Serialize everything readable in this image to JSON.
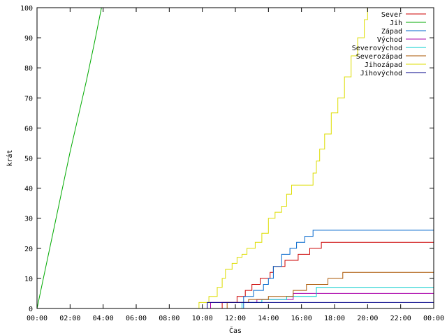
{
  "chart_data": {
    "type": "line",
    "step": true,
    "xlabel": "Čas",
    "ylabel": "krát",
    "xlim": [
      0,
      24
    ],
    "ylim": [
      0,
      100
    ],
    "x_tick_labels": [
      "00:00",
      "02:00",
      "04:00",
      "06:00",
      "08:00",
      "10:00",
      "12:00",
      "14:00",
      "16:00",
      "18:00",
      "20:00",
      "22:00",
      "00:00"
    ],
    "y_tick_labels": [
      "0",
      "10",
      "20",
      "30",
      "40",
      "50",
      "60",
      "70",
      "80",
      "90",
      "100"
    ],
    "grid": false,
    "legend_position": "top-right",
    "series": [
      {
        "name": "Sever",
        "color": "#cc0000",
        "x": [
          0,
          11.2,
          12.1,
          12.6,
          13.0,
          13.5,
          14.1,
          14.3,
          15.0,
          15.8,
          16.5,
          17.2,
          17.5,
          17.8,
          24
        ],
        "y": [
          0,
          2,
          4,
          6,
          8,
          10,
          12,
          14,
          16,
          18,
          20,
          22,
          22,
          22,
          22
        ]
      },
      {
        "name": "Jih",
        "color": "#00aa00",
        "x": [
          0,
          0.5,
          1.0,
          1.5,
          2.0,
          2.5,
          3.0,
          3.5,
          3.9
        ],
        "y": [
          0,
          13,
          26,
          39,
          52,
          64,
          76,
          89,
          100
        ]
      },
      {
        "name": "Západ",
        "color": "#0066cc",
        "x": [
          0,
          12.5,
          13.1,
          13.7,
          14.0,
          14.3,
          14.8,
          15.3,
          15.7,
          16.2,
          16.7,
          17.1,
          24
        ],
        "y": [
          0,
          4,
          6,
          8,
          10,
          14,
          18,
          20,
          22,
          24,
          26,
          26,
          26
        ]
      },
      {
        "name": "Východ",
        "color": "#aa00aa",
        "x": [
          0,
          10.5,
          13.3,
          15.5,
          24
        ],
        "y": [
          0,
          2,
          3,
          5,
          5
        ]
      },
      {
        "name": "Severovýchod",
        "color": "#00cccc",
        "x": [
          0,
          12.4,
          13.6,
          15.1,
          16.9,
          24
        ],
        "y": [
          0,
          2,
          3,
          4,
          7,
          7
        ]
      },
      {
        "name": "Severozápad",
        "color": "#aa5500",
        "x": [
          0,
          11.5,
          12.8,
          14.0,
          15.5,
          16.3,
          17.6,
          18.5,
          24
        ],
        "y": [
          0,
          2,
          3,
          4,
          6,
          8,
          10,
          12,
          12
        ]
      },
      {
        "name": "Jihozápad",
        "color": "#dddd00",
        "x": [
          0,
          9.8,
          10.4,
          10.9,
          11.2,
          11.4,
          11.6,
          11.8,
          12.1,
          12.4,
          12.7,
          13.2,
          13.6,
          14.0,
          14.4,
          14.8,
          15.1,
          15.4,
          15.7,
          16.0,
          16.4,
          16.7,
          16.9,
          17.1,
          17.4,
          17.8,
          18.2,
          18.6,
          19.0,
          19.4,
          19.8,
          20.0
        ],
        "y": [
          0,
          2,
          4,
          7,
          10,
          13,
          13,
          15,
          17,
          18,
          20,
          22,
          25,
          30,
          32,
          34,
          38,
          41,
          41,
          41,
          41,
          45,
          49,
          53,
          58,
          65,
          70,
          77,
          84,
          90,
          96,
          100
        ]
      },
      {
        "name": "Jihovýchod",
        "color": "#000088",
        "x": [
          0,
          10.3,
          12.9,
          24
        ],
        "y": [
          0,
          2,
          2,
          2
        ]
      }
    ]
  }
}
